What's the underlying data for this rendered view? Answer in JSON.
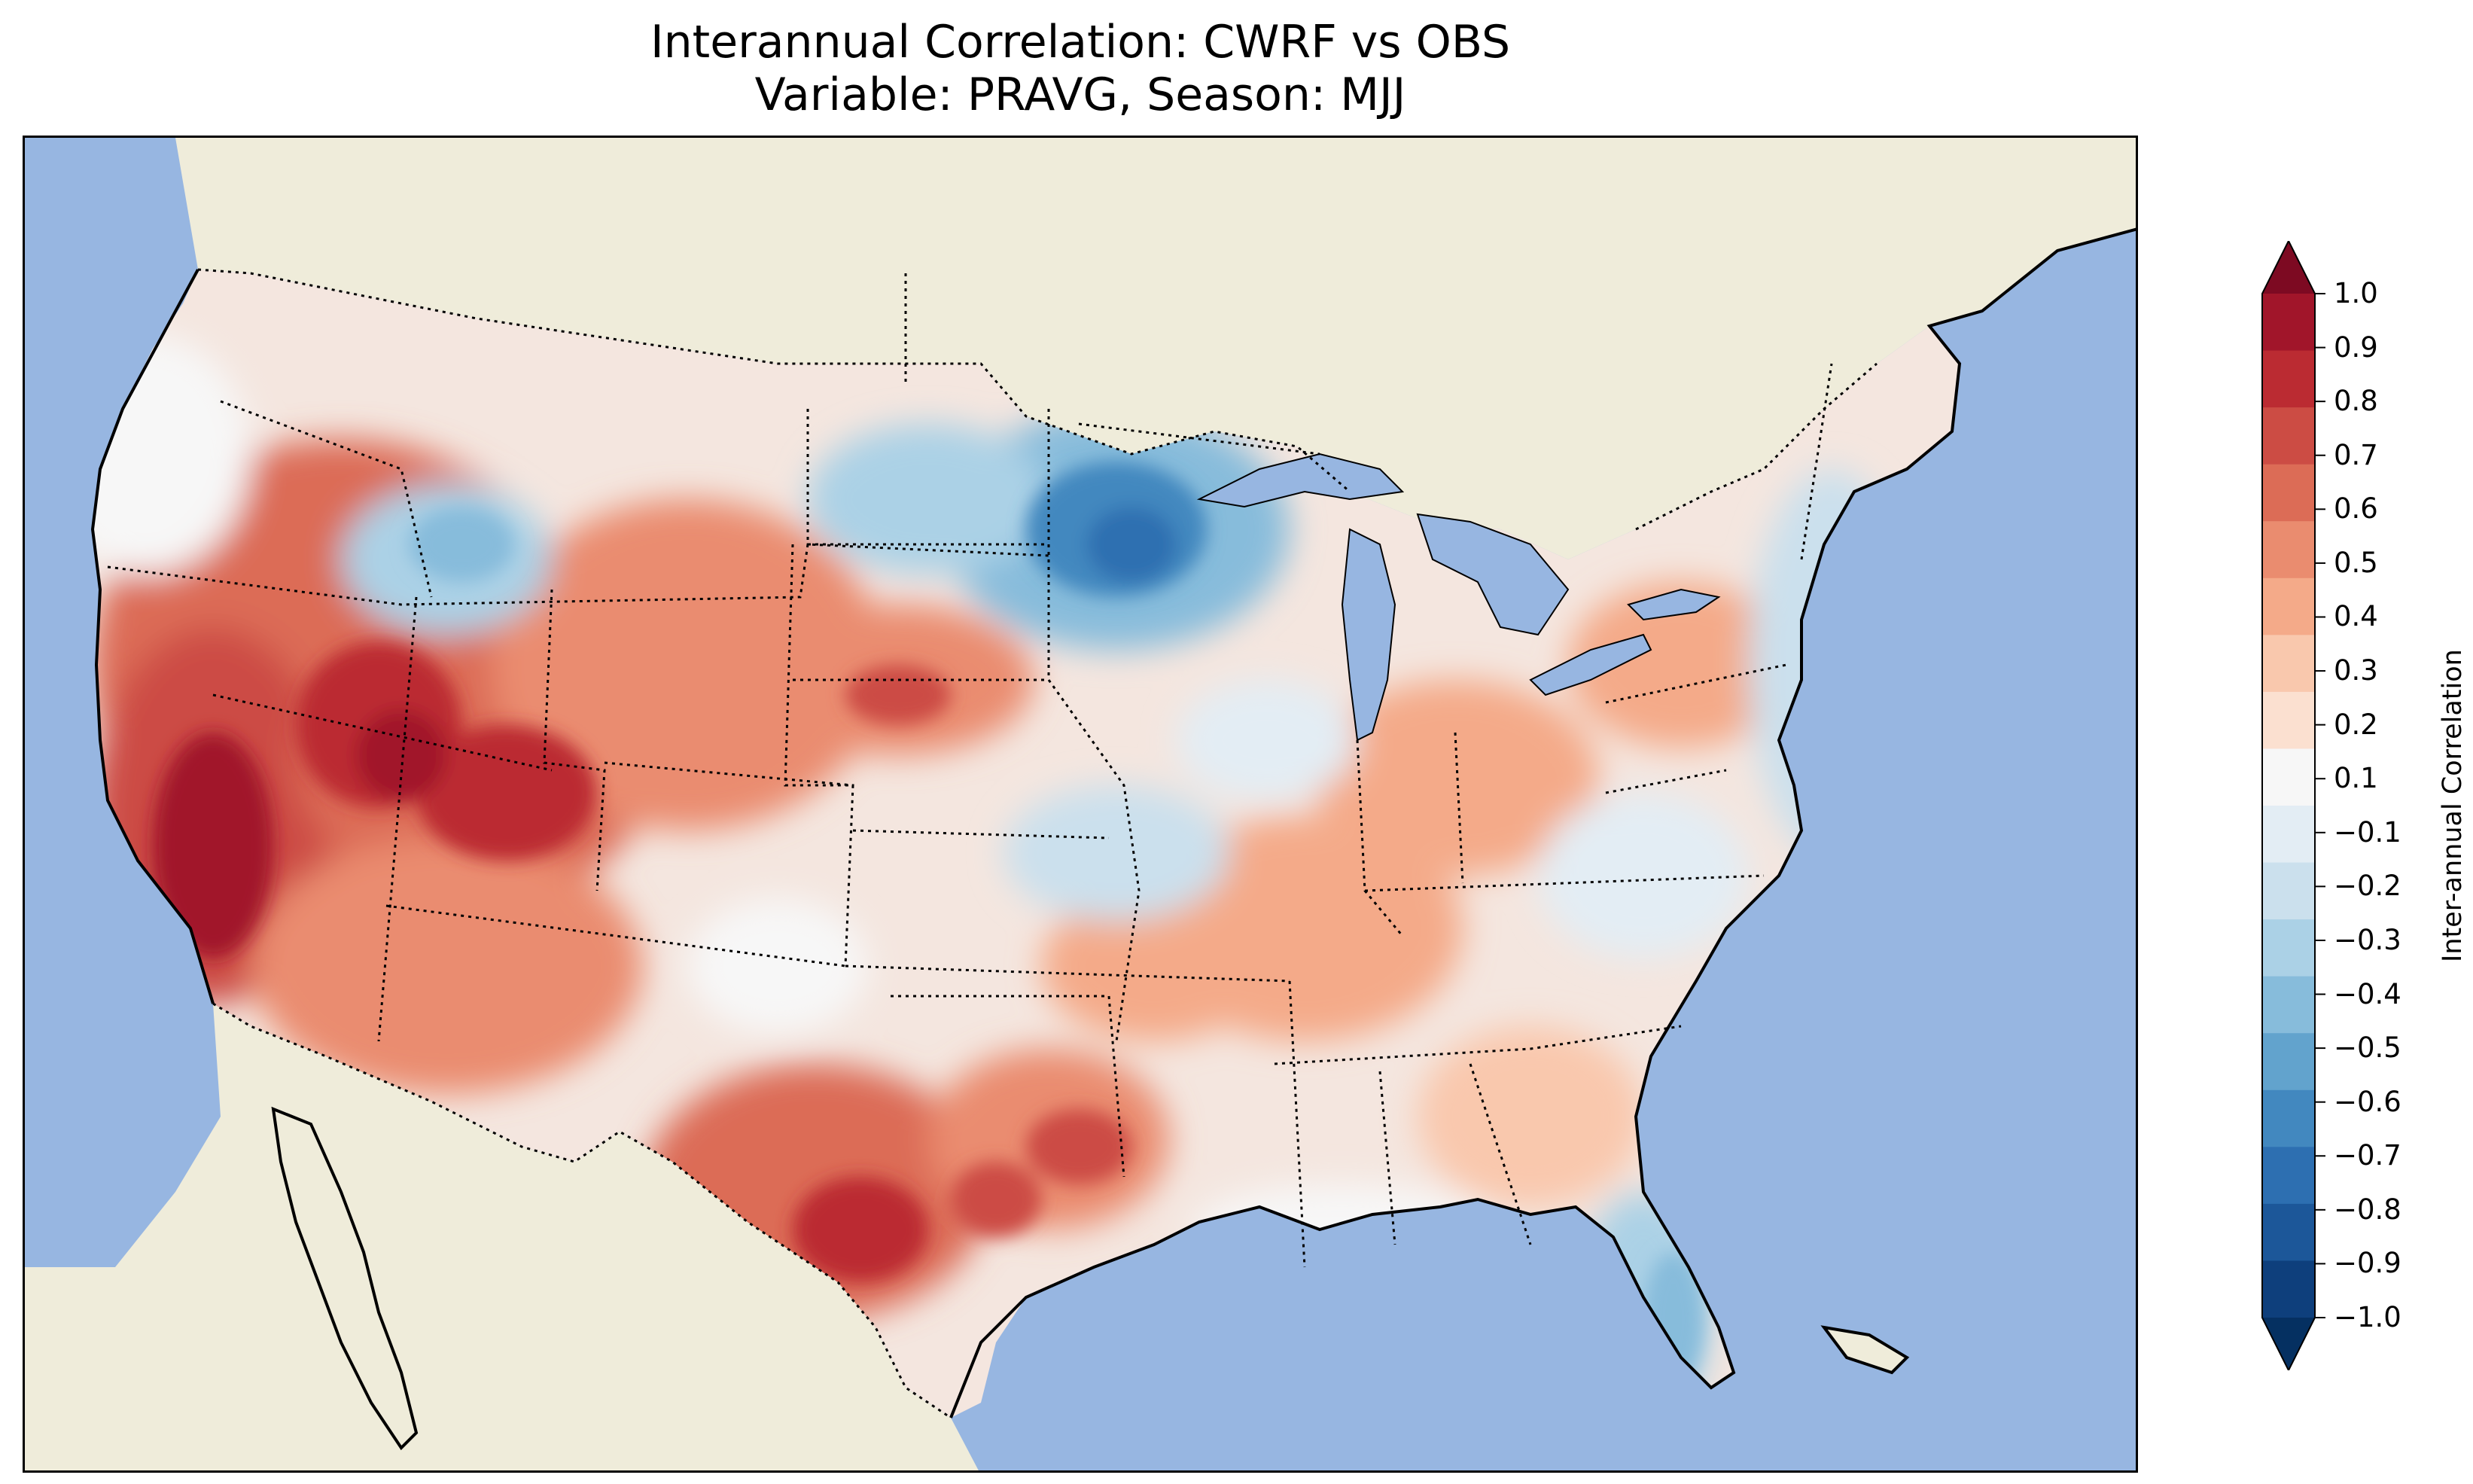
{
  "title_line1": "Interannual Correlation: CWRF vs OBS",
  "title_line2": "Variable: PRAVG, Season: MJJ",
  "colors": {
    "ocean": "#97b6e1",
    "land": "#efecda",
    "lakes": "#97b6e1",
    "strong_positive": "#b2182b",
    "strong_negative": "#2166ac"
  },
  "colorbar": {
    "label": "Inter-annual Correlation",
    "ticks": [
      "1.0",
      "0.9",
      "0.8",
      "0.7",
      "0.6",
      "0.5",
      "0.4",
      "0.3",
      "0.2",
      "0.1",
      "−0.1",
      "−0.2",
      "−0.3",
      "−0.4",
      "−0.5",
      "−0.6",
      "−0.7",
      "−0.8",
      "−0.9",
      "−1.0"
    ],
    "levels": [
      1.0,
      0.9,
      0.8,
      0.7,
      0.6,
      0.5,
      0.4,
      0.3,
      0.2,
      0.1,
      -0.1,
      -0.2,
      -0.3,
      -0.4,
      -0.5,
      -0.6,
      -0.7,
      -0.8,
      -0.9,
      -1.0
    ],
    "colors": [
      "#7d0a22",
      "#a1152a",
      "#bb2b32",
      "#cc4c44",
      "#dc6c56",
      "#ea8c6f",
      "#f4aa89",
      "#f9c8ad",
      "#fbe0d0",
      "#f7f7f7",
      "#e3edf4",
      "#cbe0ed",
      "#abd1e6",
      "#87bcdb",
      "#62a3cd",
      "#4288bf",
      "#2d6fb1",
      "#1c5799",
      "#0e3f7c",
      "#053061"
    ],
    "extend": "both"
  },
  "chart_data": {
    "type": "heatmap",
    "title": "Interannual Correlation: CWRF vs OBS\nVariable: PRAVG, Season: MJJ",
    "colorbar_label": "Inter-annual Correlation",
    "range": [
      -1.0,
      1.0
    ],
    "regions_approx": [
      {
        "region": "California / Great Basin",
        "correlation": 0.7
      },
      {
        "region": "Utah / Colorado",
        "correlation": 0.6
      },
      {
        "region": "Texas",
        "correlation": 0.6
      },
      {
        "region": "Minnesota",
        "correlation": -0.6
      },
      {
        "region": "Florida",
        "correlation": -0.4
      },
      {
        "region": "Northeast",
        "correlation": -0.3
      }
    ]
  }
}
